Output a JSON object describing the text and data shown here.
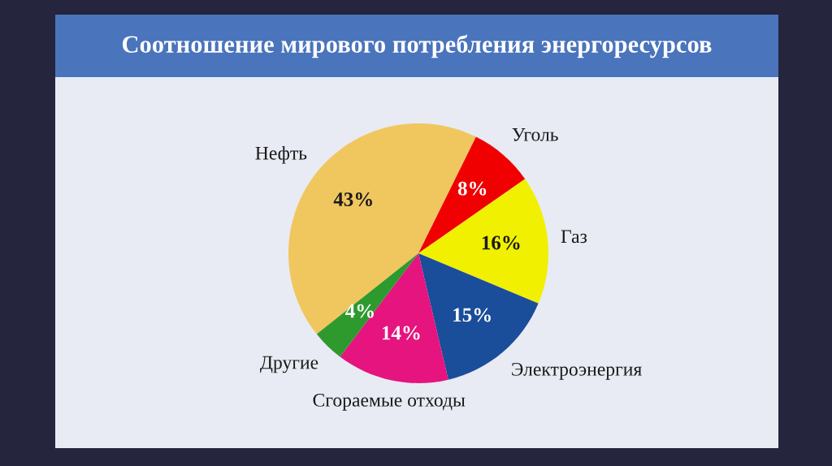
{
  "chart_data": {
    "type": "pie",
    "title": "Соотношение мирового потребления энергоресурсов",
    "categories": [
      "Нефть",
      "Уголь",
      "Газ",
      "Электроэнергия",
      "Сгораемые отходы",
      "Другие"
    ],
    "values": [
      43,
      8,
      16,
      15,
      14,
      4
    ],
    "value_labels": [
      "43%",
      "8%",
      "16%",
      "15%",
      "14%",
      "4%"
    ],
    "colors": [
      "#f0c75e",
      "#f00000",
      "#f0f000",
      "#1a4d9a",
      "#e5147f",
      "#2e9a2e"
    ]
  }
}
